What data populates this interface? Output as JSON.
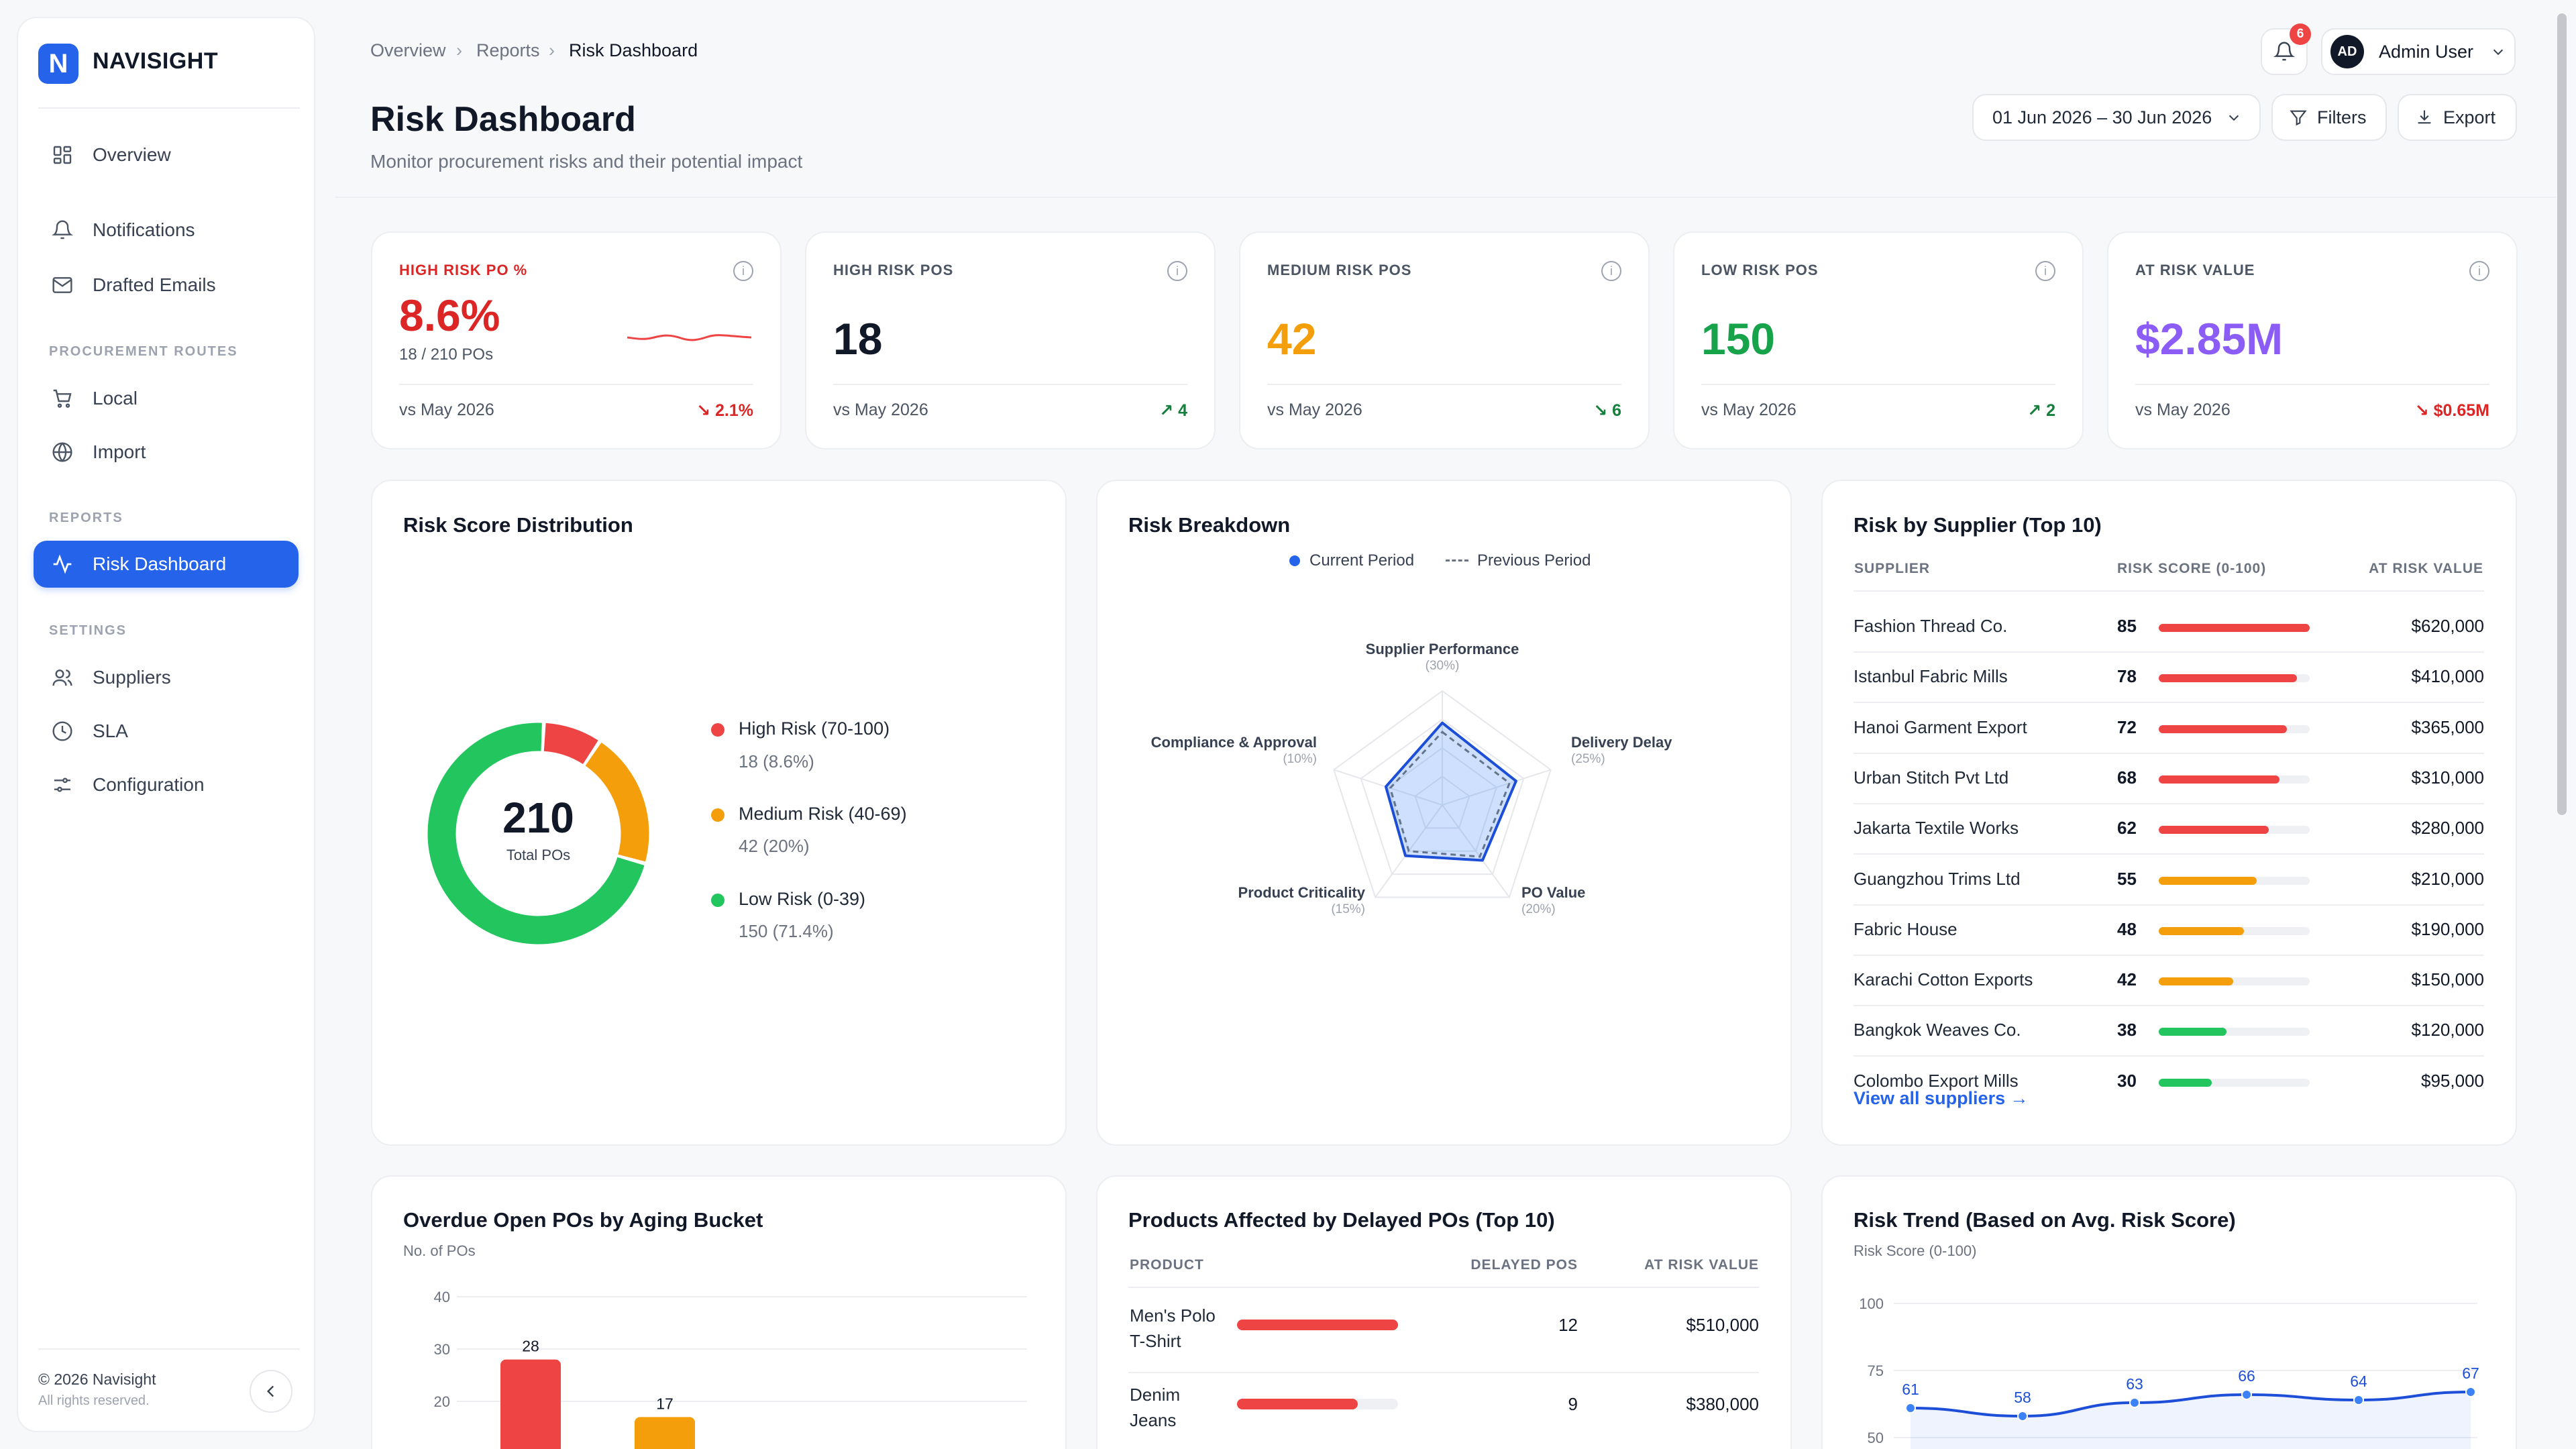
{
  "app": {
    "logo_letter": "N",
    "name": "NAVISIGHT"
  },
  "sidebar": {
    "items": [
      {
        "label": "Overview",
        "icon": "grid-icon"
      },
      {
        "label": "Notifications",
        "icon": "bell-icon"
      },
      {
        "label": "Drafted Emails",
        "icon": "mail-icon"
      }
    ],
    "sections": {
      "procurement": "PROCUREMENT ROUTES",
      "reports": "REPORTS",
      "settings": "SETTINGS"
    },
    "procurement_items": [
      {
        "label": "Local",
        "icon": "cart-icon"
      },
      {
        "label": "Import",
        "icon": "globe-icon"
      }
    ],
    "report_items": [
      {
        "label": "Risk Dashboard",
        "icon": "activity-icon",
        "active": true
      }
    ],
    "settings_items": [
      {
        "label": "Suppliers",
        "icon": "users-icon"
      },
      {
        "label": "SLA",
        "icon": "clock-icon"
      },
      {
        "label": "Configuration",
        "icon": "sliders-icon"
      }
    ],
    "footer": {
      "copyright": "© 2026 Navisight",
      "rights": "All rights reserved."
    }
  },
  "header": {
    "breadcrumbs": [
      "Overview",
      "Reports",
      "Risk Dashboard"
    ],
    "title": "Risk Dashboard",
    "subtitle": "Monitor procurement risks and their potential impact",
    "notifications_count": "6",
    "user": {
      "initials": "AD",
      "name": "Admin User"
    },
    "date_range": "01 Jun 2026 – 30 Jun 2026",
    "filters_label": "Filters",
    "export_label": "Export"
  },
  "kpis": [
    {
      "label": "HIGH RISK PO %",
      "value": "8.6%",
      "sub": "18 / 210 POs",
      "compare": "vs May 2026",
      "delta": "2.1%",
      "direction": "down",
      "value_color": "#dc2626",
      "label_color": "#dc2626",
      "delta_color": "#dc2626"
    },
    {
      "label": "HIGH RISK POS",
      "value": "18",
      "compare": "vs May 2026",
      "delta": "4",
      "direction": "up",
      "value_color": "#111827",
      "delta_color": "#15803d"
    },
    {
      "label": "MEDIUM RISK POS",
      "value": "42",
      "compare": "vs May 2026",
      "delta": "6",
      "direction": "down",
      "value_color": "#f59e0b",
      "delta_color": "#15803d"
    },
    {
      "label": "LOW RISK POS",
      "value": "150",
      "compare": "vs May 2026",
      "delta": "2",
      "direction": "up",
      "value_color": "#16a34a",
      "delta_color": "#15803d"
    },
    {
      "label": "AT RISK VALUE",
      "value": "$2.85M",
      "compare": "vs May 2026",
      "delta": "$0.65M",
      "direction": "down",
      "value_color": "#8b5cf6",
      "delta_color": "#dc2626"
    }
  ],
  "distribution": {
    "title": "Risk Score Distribution",
    "total": "210",
    "total_label": "Total POs",
    "chart_data": {
      "type": "pie",
      "categories": [
        "High Risk (70-100)",
        "Medium Risk (40-69)",
        "Low Risk (0-39)"
      ],
      "values": [
        18,
        42,
        150
      ],
      "details": [
        "18 (8.6%)",
        "42 (20%)",
        "150 (71.4%)"
      ],
      "colors": [
        "#ef4444",
        "#f59e0b",
        "#22c55e"
      ]
    }
  },
  "breakdown": {
    "title": "Risk Breakdown",
    "legend_current": "Current Period",
    "legend_previous": "Previous Period",
    "axes": [
      {
        "label": "Supplier Performance",
        "weight": "(30%)"
      },
      {
        "label": "Delivery Delay",
        "weight": "(25%)"
      },
      {
        "label": "PO Value",
        "weight": "(20%)"
      },
      {
        "label": "Product Criticality",
        "weight": "(15%)"
      },
      {
        "label": "Compliance & Approval",
        "weight": "(10%)"
      }
    ],
    "chart_data": {
      "type": "radar",
      "max": 100,
      "series": [
        {
          "name": "Current Period",
          "values": [
            72,
            68,
            60,
            55,
            52
          ]
        },
        {
          "name": "Previous Period",
          "values": [
            64,
            62,
            56,
            50,
            48
          ]
        }
      ]
    }
  },
  "suppliers": {
    "title": "Risk by Supplier (Top 10)",
    "columns": [
      "SUPPLIER",
      "RISK SCORE (0-100)",
      "AT RISK VALUE"
    ],
    "rows": [
      {
        "name": "Fashion Thread Co.",
        "score": 85,
        "value": "$620,000",
        "color": "#ef4444"
      },
      {
        "name": "Istanbul Fabric Mills",
        "score": 78,
        "value": "$410,000",
        "color": "#ef4444"
      },
      {
        "name": "Hanoi Garment Export",
        "score": 72,
        "value": "$365,000",
        "color": "#ef4444"
      },
      {
        "name": "Urban Stitch Pvt Ltd",
        "score": 68,
        "value": "$310,000",
        "color": "#ef4444"
      },
      {
        "name": "Jakarta Textile Works",
        "score": 62,
        "value": "$280,000",
        "color": "#ef4444"
      },
      {
        "name": "Guangzhou Trims Ltd",
        "score": 55,
        "value": "$210,000",
        "color": "#f59e0b"
      },
      {
        "name": "Fabric House",
        "score": 48,
        "value": "$190,000",
        "color": "#f59e0b"
      },
      {
        "name": "Karachi Cotton Exports",
        "score": 42,
        "value": "$150,000",
        "color": "#f59e0b"
      },
      {
        "name": "Bangkok Weaves Co.",
        "score": 38,
        "value": "$120,000",
        "color": "#22c55e"
      },
      {
        "name": "Colombo Export Mills",
        "score": 30,
        "value": "$95,000",
        "color": "#22c55e"
      }
    ],
    "link": "View all suppliers →"
  },
  "aging": {
    "title": "Overdue Open POs by Aging Bucket",
    "subtitle": "No. of POs",
    "chart_data": {
      "type": "bar",
      "yticks": [
        40,
        30,
        20
      ],
      "ylim": [
        0,
        40
      ],
      "values": [
        28,
        17
      ],
      "colors": [
        "#ef4444",
        "#f59e0b"
      ]
    }
  },
  "products": {
    "title": "Products Affected by Delayed POs (Top 10)",
    "columns": [
      "PRODUCT",
      "DELAYED POS",
      "AT RISK VALUE"
    ],
    "rows": [
      {
        "name_line1": "Men's Polo",
        "name_line2": "T-Shirt",
        "delayed": 12,
        "value": "$510,000"
      },
      {
        "name_line1": "Denim",
        "name_line2": "Jeans",
        "delayed": 9,
        "value": "$380,000"
      }
    ]
  },
  "trend": {
    "title": "Risk Trend (Based on Avg. Risk Score)",
    "subtitle": "Risk Score (0-100)",
    "chart_data": {
      "type": "line",
      "yticks": [
        100,
        75,
        50
      ],
      "values": [
        61,
        58,
        63,
        66,
        64,
        67
      ],
      "color": "#1d4ed8"
    }
  }
}
